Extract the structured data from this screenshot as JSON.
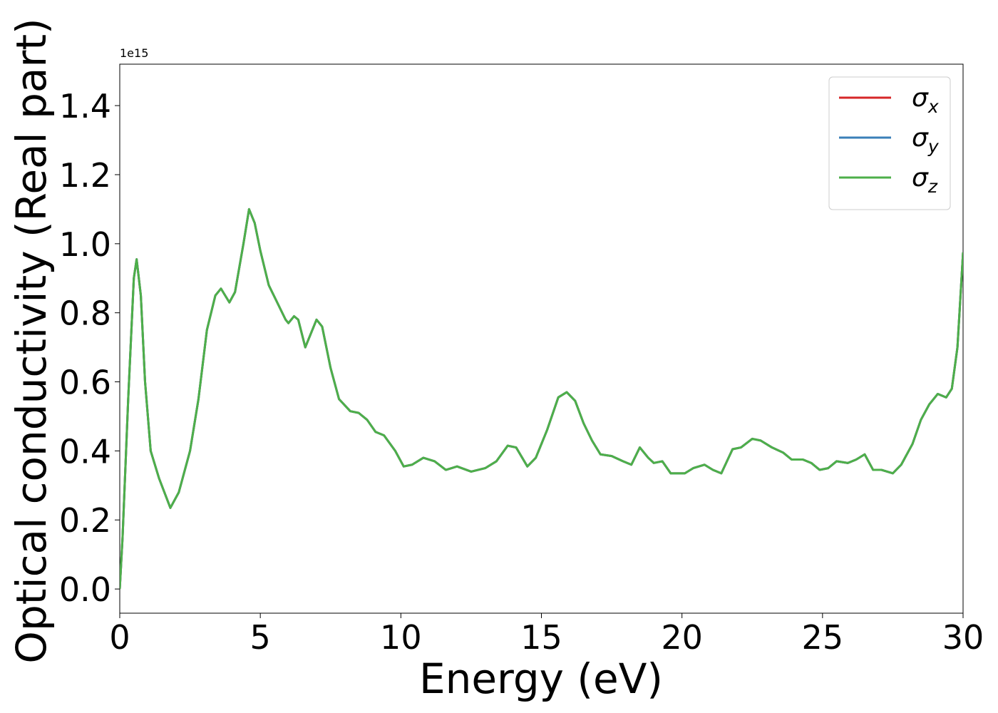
{
  "chart_data": {
    "type": "line",
    "xlabel": "Energy (eV)",
    "ylabel": "Optical conductivity (Real part)",
    "y_offset_text": "1e15",
    "x": [
      0,
      0.1,
      0.3,
      0.5,
      0.6,
      0.75,
      0.9,
      1.1,
      1.4,
      1.8,
      2.1,
      2.5,
      2.8,
      3.1,
      3.4,
      3.6,
      3.9,
      4.1,
      4.4,
      4.6,
      4.8,
      5.0,
      5.3,
      5.6,
      5.9,
      6.0,
      6.2,
      6.35,
      6.6,
      6.8,
      7.0,
      7.2,
      7.5,
      7.8,
      8.2,
      8.5,
      8.8,
      9.1,
      9.4,
      9.8,
      10.1,
      10.4,
      10.8,
      11.2,
      11.6,
      12.0,
      12.5,
      13.0,
      13.4,
      13.8,
      14.1,
      14.5,
      14.8,
      15.2,
      15.6,
      15.9,
      16.2,
      16.5,
      16.8,
      17.1,
      17.5,
      17.9,
      18.2,
      18.5,
      18.8,
      19.0,
      19.3,
      19.6,
      20.1,
      20.4,
      20.8,
      21.1,
      21.4,
      21.8,
      22.1,
      22.5,
      22.8,
      23.2,
      23.6,
      23.9,
      24.3,
      24.6,
      24.9,
      25.2,
      25.5,
      25.9,
      26.2,
      26.5,
      26.8,
      27.1,
      27.5,
      27.8,
      28.2,
      28.5,
      28.8,
      29.1,
      29.4,
      29.6,
      29.8,
      30
    ],
    "series": [
      {
        "name": "σx",
        "color": "#d62728",
        "values": [
          0.0,
          0.15,
          0.55,
          0.9,
          0.955,
          0.85,
          0.6,
          0.4,
          0.32,
          0.235,
          0.28,
          0.4,
          0.55,
          0.75,
          0.85,
          0.87,
          0.83,
          0.86,
          1.0,
          1.1,
          1.06,
          0.98,
          0.88,
          0.83,
          0.78,
          0.77,
          0.79,
          0.78,
          0.7,
          0.74,
          0.78,
          0.76,
          0.64,
          0.55,
          0.515,
          0.51,
          0.49,
          0.455,
          0.445,
          0.4,
          0.355,
          0.36,
          0.38,
          0.37,
          0.345,
          0.355,
          0.34,
          0.35,
          0.37,
          0.415,
          0.41,
          0.355,
          0.38,
          0.46,
          0.555,
          0.57,
          0.545,
          0.48,
          0.43,
          0.39,
          0.385,
          0.37,
          0.36,
          0.41,
          0.38,
          0.365,
          0.37,
          0.335,
          0.335,
          0.35,
          0.36,
          0.345,
          0.335,
          0.405,
          0.41,
          0.435,
          0.43,
          0.41,
          0.395,
          0.375,
          0.375,
          0.365,
          0.345,
          0.35,
          0.37,
          0.365,
          0.375,
          0.39,
          0.345,
          0.345,
          0.335,
          0.36,
          0.42,
          0.49,
          0.535,
          0.565,
          0.555,
          0.58,
          0.7,
          0.975
        ]
      },
      {
        "name": "σy",
        "color": "#3a7fb8",
        "values": [
          0.0,
          0.15,
          0.55,
          0.9,
          0.955,
          0.85,
          0.6,
          0.4,
          0.32,
          0.235,
          0.28,
          0.4,
          0.55,
          0.75,
          0.85,
          0.87,
          0.83,
          0.86,
          1.0,
          1.1,
          1.06,
          0.98,
          0.88,
          0.83,
          0.78,
          0.77,
          0.79,
          0.78,
          0.7,
          0.74,
          0.78,
          0.76,
          0.64,
          0.55,
          0.515,
          0.51,
          0.49,
          0.455,
          0.445,
          0.4,
          0.355,
          0.36,
          0.38,
          0.37,
          0.345,
          0.355,
          0.34,
          0.35,
          0.37,
          0.415,
          0.41,
          0.355,
          0.38,
          0.46,
          0.555,
          0.57,
          0.545,
          0.48,
          0.43,
          0.39,
          0.385,
          0.37,
          0.36,
          0.41,
          0.38,
          0.365,
          0.37,
          0.335,
          0.335,
          0.35,
          0.36,
          0.345,
          0.335,
          0.405,
          0.41,
          0.435,
          0.43,
          0.41,
          0.395,
          0.375,
          0.375,
          0.365,
          0.345,
          0.35,
          0.37,
          0.365,
          0.375,
          0.39,
          0.345,
          0.345,
          0.335,
          0.36,
          0.42,
          0.49,
          0.535,
          0.565,
          0.555,
          0.58,
          0.7,
          0.975
        ]
      },
      {
        "name": "σz",
        "color": "#4daf4a",
        "values": [
          0.0,
          0.15,
          0.55,
          0.9,
          0.955,
          0.85,
          0.6,
          0.4,
          0.32,
          0.235,
          0.28,
          0.4,
          0.55,
          0.75,
          0.85,
          0.87,
          0.83,
          0.86,
          1.0,
          1.1,
          1.06,
          0.98,
          0.88,
          0.83,
          0.78,
          0.77,
          0.79,
          0.78,
          0.7,
          0.74,
          0.78,
          0.76,
          0.64,
          0.55,
          0.515,
          0.51,
          0.49,
          0.455,
          0.445,
          0.4,
          0.355,
          0.36,
          0.38,
          0.37,
          0.345,
          0.355,
          0.34,
          0.35,
          0.37,
          0.415,
          0.41,
          0.355,
          0.38,
          0.46,
          0.555,
          0.57,
          0.545,
          0.48,
          0.43,
          0.39,
          0.385,
          0.37,
          0.36,
          0.41,
          0.38,
          0.365,
          0.37,
          0.335,
          0.335,
          0.35,
          0.36,
          0.345,
          0.335,
          0.405,
          0.41,
          0.435,
          0.43,
          0.41,
          0.395,
          0.375,
          0.375,
          0.365,
          0.345,
          0.35,
          0.37,
          0.365,
          0.375,
          0.39,
          0.345,
          0.345,
          0.335,
          0.36,
          0.42,
          0.49,
          0.535,
          0.565,
          0.555,
          0.58,
          0.7,
          0.975
        ]
      }
    ],
    "xlim": [
      0,
      30
    ],
    "xticks": [
      0,
      5,
      10,
      15,
      20,
      25,
      30
    ],
    "ylim": [
      -0.07,
      1.52
    ],
    "yticks": [
      {
        "value": 0,
        "label": "0.0"
      },
      0.2,
      0.4,
      0.6,
      0.8,
      {
        "value": 1,
        "label": "1.0"
      },
      1.2,
      1.4
    ],
    "legend": "upper right",
    "grid": false
  }
}
